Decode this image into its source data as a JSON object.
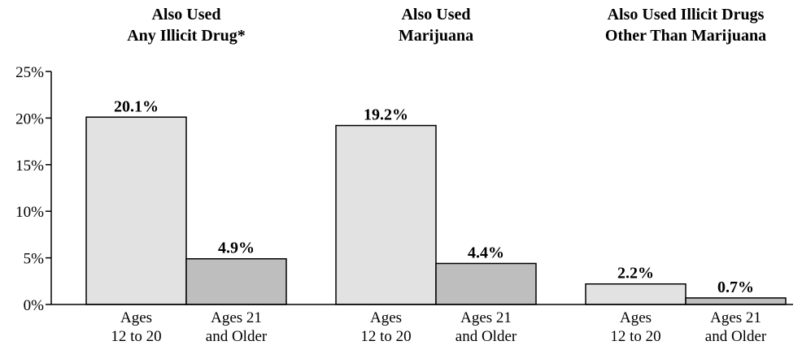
{
  "chart_data": {
    "type": "bar",
    "groups": [
      {
        "title": [
          "Also Used",
          "Any Illicit Drug*"
        ],
        "categories": [
          [
            "Ages",
            "12 to 20"
          ],
          [
            "Ages 21",
            "and Older"
          ]
        ],
        "values": [
          20.1,
          4.9
        ],
        "value_labels": [
          "20.1%",
          "4.9%"
        ]
      },
      {
        "title": [
          "Also Used",
          "Marijuana"
        ],
        "categories": [
          [
            "Ages",
            "12 to 20"
          ],
          [
            "Ages 21",
            "and Older"
          ]
        ],
        "values": [
          19.2,
          4.4
        ],
        "value_labels": [
          "19.2%",
          "4.4%"
        ]
      },
      {
        "title": [
          "Also Used Illicit Drugs",
          "Other Than Marijuana"
        ],
        "categories": [
          [
            "Ages",
            "12 to 20"
          ],
          [
            "Ages 21",
            "and Older"
          ]
        ],
        "values": [
          2.2,
          0.7
        ],
        "value_labels": [
          "2.2%",
          "0.7%"
        ]
      }
    ],
    "colors": [
      "#e2e2e2",
      "#bebebe"
    ],
    "ylim": [
      0,
      25
    ],
    "yticks": [
      {
        "value": 0,
        "label": "0%"
      },
      {
        "value": 5,
        "label": "5%"
      },
      {
        "value": 10,
        "label": "10%"
      },
      {
        "value": 15,
        "label": "15%"
      },
      {
        "value": 20,
        "label": "20%"
      },
      {
        "value": 25,
        "label": "25%"
      }
    ]
  }
}
